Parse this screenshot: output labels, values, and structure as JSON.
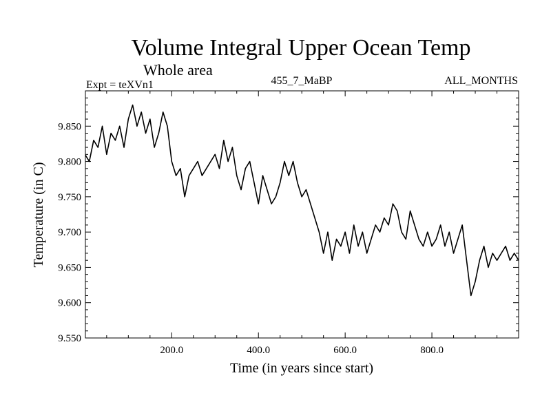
{
  "chart_data": {
    "type": "line",
    "title": "Volume Integral Upper Ocean Temp",
    "subtitle": "Whole area",
    "expt_label": "Expt = teXVn1",
    "run_label": "455_7_MaBP",
    "months_label": "ALL_MONTHS",
    "xlabel": "Time (in years since start)",
    "ylabel": "Temperature (in C)",
    "xlim": [
      1,
      1000
    ],
    "ylim": [
      9.55,
      9.9
    ],
    "grid": false,
    "x_tick_values": [
      200,
      400,
      600,
      800
    ],
    "x_tick_labels": [
      "200.0",
      "400.0",
      "600.0",
      "800.0"
    ],
    "y_tick_values": [
      9.55,
      9.6,
      9.65,
      9.7,
      9.75,
      9.8,
      9.85
    ],
    "y_tick_labels": [
      "9.550",
      "9.600",
      "9.650",
      "9.700",
      "9.750",
      "9.800",
      "9.850"
    ],
    "series": [
      {
        "name": "Volume Integral Upper Ocean Temp",
        "color": "#000000",
        "x": [
          0,
          10,
          20,
          30,
          40,
          50,
          60,
          70,
          80,
          90,
          100,
          110,
          120,
          130,
          140,
          150,
          160,
          170,
          180,
          190,
          200,
          210,
          220,
          230,
          240,
          250,
          260,
          270,
          280,
          290,
          300,
          310,
          320,
          330,
          340,
          350,
          360,
          370,
          380,
          390,
          400,
          410,
          420,
          430,
          440,
          450,
          460,
          470,
          480,
          490,
          500,
          510,
          520,
          530,
          540,
          550,
          560,
          570,
          580,
          590,
          600,
          610,
          620,
          630,
          640,
          650,
          660,
          670,
          680,
          690,
          700,
          710,
          720,
          730,
          740,
          750,
          760,
          770,
          780,
          790,
          800,
          810,
          820,
          830,
          840,
          850,
          860,
          870,
          880,
          890,
          900,
          910,
          920,
          930,
          940,
          950,
          960,
          970,
          980,
          990,
          1000
        ],
        "values": [
          9.81,
          9.8,
          9.83,
          9.82,
          9.85,
          9.81,
          9.84,
          9.83,
          9.85,
          9.82,
          9.86,
          9.88,
          9.85,
          9.87,
          9.84,
          9.86,
          9.82,
          9.84,
          9.87,
          9.85,
          9.8,
          9.78,
          9.79,
          9.75,
          9.78,
          9.79,
          9.8,
          9.78,
          9.79,
          9.8,
          9.81,
          9.79,
          9.83,
          9.8,
          9.82,
          9.78,
          9.76,
          9.79,
          9.8,
          9.77,
          9.74,
          9.78,
          9.76,
          9.74,
          9.75,
          9.77,
          9.8,
          9.78,
          9.8,
          9.77,
          9.75,
          9.76,
          9.74,
          9.72,
          9.7,
          9.67,
          9.7,
          9.66,
          9.69,
          9.68,
          9.7,
          9.67,
          9.71,
          9.68,
          9.7,
          9.67,
          9.69,
          9.71,
          9.7,
          9.72,
          9.71,
          9.74,
          9.73,
          9.7,
          9.69,
          9.73,
          9.71,
          9.69,
          9.68,
          9.7,
          9.68,
          9.69,
          9.71,
          9.68,
          9.7,
          9.67,
          9.69,
          9.71,
          9.66,
          9.61,
          9.63,
          9.66,
          9.68,
          9.65,
          9.67,
          9.66,
          9.67,
          9.68,
          9.66,
          9.67,
          9.66
        ]
      }
    ]
  }
}
